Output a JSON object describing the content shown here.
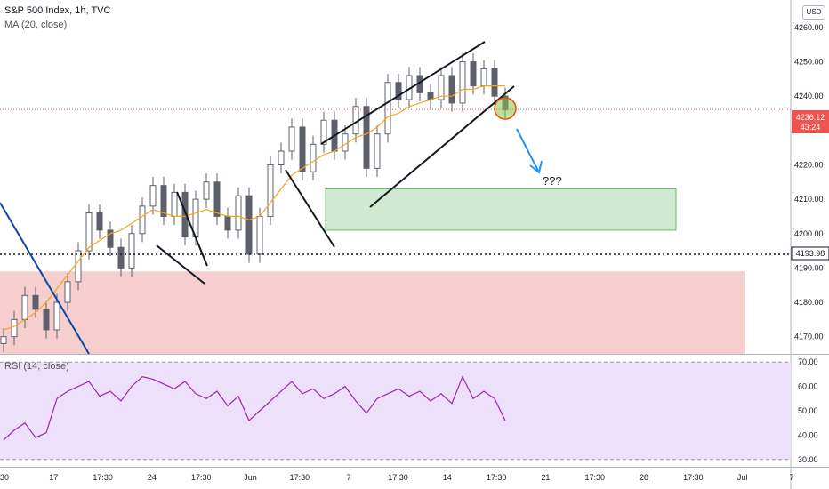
{
  "header": {
    "title": "S&P 500 Index, 1h, TVC",
    "indicator": "MA (20, close)",
    "currency": "USD",
    "rsi_label": "RSI (14, close)",
    "annotation": "???"
  },
  "price_tag": {
    "price": "4236.12",
    "countdown": "43:24"
  },
  "level_tag": "4193.98",
  "colors": {
    "up": "#26a69a",
    "down": "#ef5350",
    "candle": "#5d606b",
    "ma": "#f7a21b",
    "rsi": "#9c27b0",
    "rsi_bg": "#ede0fb",
    "demand_zone": "#c8e6c9",
    "supply_zone": "#f5c6c6",
    "arrow": "#2196f3",
    "trendline": "#0d47a1",
    "price_tag": "#ef5350"
  },
  "chart_data": [
    {
      "type": "candlestick",
      "title": "S&P 500 Index, 1h, TVC",
      "y_ticks": [
        "4260.00",
        "4250.00",
        "4240.00",
        "4230.00",
        "4220.00",
        "4210.00",
        "4200.00",
        "4190.00",
        "4180.00",
        "4170.00"
      ],
      "ylim": [
        4165,
        4268
      ],
      "x_ticks": [
        "30",
        "17",
        "17:30",
        "24",
        "17:30",
        "Jun",
        "17:30",
        "7",
        "17:30",
        "14",
        "17:30",
        "21",
        "17:30",
        "28",
        "17:30",
        "Jul",
        "7"
      ],
      "series": [
        {
          "name": "S&P 500 Index",
          "key": "price",
          "values": [
            4170,
            4175,
            4182,
            4178,
            4172,
            4180,
            4186,
            4195,
            4206,
            4201,
            4196,
            4190,
            4200,
            4208,
            4214,
            4205,
            4212,
            4199,
            4210,
            4215,
            4205,
            4201,
            4211,
            4194,
            4205,
            4220,
            4224,
            4231,
            4218,
            4226,
            4233,
            4224,
            4229,
            4237,
            4219,
            4229,
            4244,
            4239,
            4246,
            4241,
            4239,
            4246,
            4238,
            4250,
            4243,
            4248,
            4240,
            4236
          ]
        },
        {
          "name": "MA (20, close)",
          "key": "ma",
          "values": [
            4172,
            4173,
            4175,
            4177,
            4180,
            4184,
            4188,
            4192,
            4196,
            4198,
            4200,
            4201,
            4203,
            4205,
            4207,
            4206,
            4205,
            4205,
            4206,
            4207,
            4206,
            4205,
            4205,
            4204,
            4205,
            4209,
            4213,
            4217,
            4219,
            4221,
            4223,
            4224,
            4226,
            4228,
            4229,
            4231,
            4234,
            4235,
            4237,
            4238,
            4239,
            4240,
            4240,
            4242,
            4242,
            4243,
            4243,
            4243
          ]
        }
      ],
      "annotations": {
        "supply_zone": [
          4165,
          4189
        ],
        "demand_zone": [
          4201,
          4213
        ],
        "horizontal_level": 4193.98,
        "current_price": 4236.12
      }
    },
    {
      "type": "line",
      "title": "RSI (14, close)",
      "y_ticks": [
        "70.00",
        "60.00",
        "50.00",
        "40.00",
        "30.00"
      ],
      "ylim": [
        27,
        73
      ],
      "bands": [
        30,
        70
      ],
      "series": [
        {
          "name": "RSI (14, close)",
          "values": [
            38,
            42,
            45,
            39,
            41,
            55,
            58,
            60,
            62,
            56,
            58,
            54,
            60,
            64,
            63,
            61,
            59,
            62,
            57,
            55,
            58,
            52,
            56,
            46,
            50,
            54,
            58,
            62,
            57,
            59,
            55,
            57,
            60,
            54,
            49,
            55,
            57,
            59,
            56,
            58,
            54,
            57,
            53,
            64,
            55,
            58,
            55,
            46
          ]
        }
      ]
    }
  ]
}
